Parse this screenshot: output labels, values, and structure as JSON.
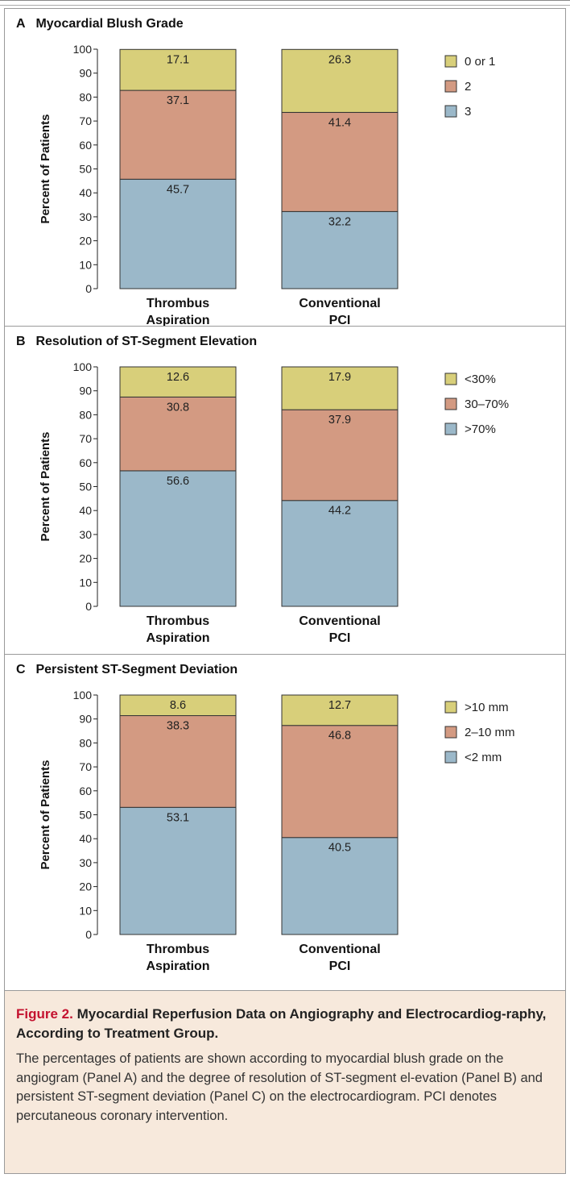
{
  "figure": {
    "caption_label": "Figure 2.",
    "caption_title": "Myocardial Reperfusion Data on Angiography and Electrocardiog-raphy, According to Treatment Group.",
    "caption_text": "The percentages of patients are shown according to myocardial blush grade on the angiogram (Panel A) and the degree of resolution of ST-segment el-evation (Panel B) and persistent ST-segment deviation (Panel C) on the electrocardiogram. PCI denotes percutaneous coronary intervention."
  },
  "colors": {
    "bottom_segment": "#9bb8c9",
    "middle_segment": "#d39a82",
    "top_segment": "#d8cf7a",
    "caption_background": "#f7e9dc",
    "figure_label": "#c4122f"
  },
  "chart_data": [
    {
      "type": "bar",
      "stacked": true,
      "panel": "A",
      "title": "Myocardial Blush Grade",
      "xlabel": "",
      "ylabel": "Percent of Patients",
      "ylim": [
        0,
        100
      ],
      "yticks": [
        0,
        10,
        20,
        30,
        40,
        50,
        60,
        70,
        80,
        90,
        100
      ],
      "categories": [
        [
          "Thrombus",
          "Aspiration"
        ],
        [
          "Conventional",
          "PCI"
        ]
      ],
      "series": [
        {
          "name": "3",
          "values": [
            45.7,
            32.2
          ]
        },
        {
          "name": "2",
          "values": [
            37.1,
            41.4
          ]
        },
        {
          "name": "0 or 1",
          "values": [
            17.1,
            26.3
          ]
        }
      ],
      "legend": [
        "0 or 1",
        "2",
        "3"
      ],
      "legend_position": "right"
    },
    {
      "type": "bar",
      "stacked": true,
      "panel": "B",
      "title": "Resolution of ST-Segment Elevation",
      "xlabel": "",
      "ylabel": "Percent of Patients",
      "ylim": [
        0,
        100
      ],
      "yticks": [
        0,
        10,
        20,
        30,
        40,
        50,
        60,
        70,
        80,
        90,
        100
      ],
      "categories": [
        [
          "Thrombus",
          "Aspiration"
        ],
        [
          "Conventional",
          "PCI"
        ]
      ],
      "series": [
        {
          "name": ">70%",
          "values": [
            56.6,
            44.2
          ]
        },
        {
          "name": "30–70%",
          "values": [
            30.8,
            37.9
          ]
        },
        {
          "name": "<30%",
          "values": [
            12.6,
            17.9
          ]
        }
      ],
      "legend": [
        "<30%",
        "30–70%",
        ">70%"
      ],
      "legend_position": "right"
    },
    {
      "type": "bar",
      "stacked": true,
      "panel": "C",
      "title": "Persistent ST-Segment Deviation",
      "xlabel": "",
      "ylabel": "Percent of Patients",
      "ylim": [
        0,
        100
      ],
      "yticks": [
        0,
        10,
        20,
        30,
        40,
        50,
        60,
        70,
        80,
        90,
        100
      ],
      "categories": [
        [
          "Thrombus",
          "Aspiration"
        ],
        [
          "Conventional",
          "PCI"
        ]
      ],
      "series": [
        {
          "name": "<2 mm",
          "values": [
            53.1,
            40.5
          ]
        },
        {
          "name": "2–10 mm",
          "values": [
            38.3,
            46.8
          ]
        },
        {
          "name": ">10 mm",
          "values": [
            8.6,
            12.7
          ]
        }
      ],
      "legend": [
        ">10 mm",
        "2–10 mm",
        "<2 mm"
      ],
      "legend_position": "right"
    }
  ]
}
